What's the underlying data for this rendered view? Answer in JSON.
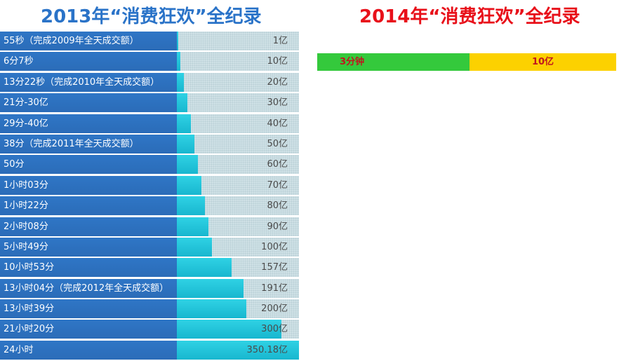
{
  "chart_data": [
    {
      "type": "bar",
      "title": "2013年“消费狂欢”全纪录",
      "categories": [
        "55秒（完成2009年全天成交额）",
        "6分7秒",
        "13分22秒（完成2010年全天成交额）",
        "21分-30亿",
        "29分-40亿",
        "38分（完成2011年全天成交额）",
        "50分",
        "1小时03分",
        "1小时22分",
        "2小时08分",
        "5小时49分",
        "10小时53分",
        "13小时04分（完成2012年全天成交额）",
        "13小时39分",
        "21小时20分",
        "24小时"
      ],
      "values": [
        1,
        10,
        20,
        30,
        40,
        50,
        60,
        70,
        80,
        90,
        100,
        157,
        191,
        200,
        300,
        350.18
      ],
      "value_labels": [
        "1亿",
        "10亿",
        "20亿",
        "30亿",
        "40亿",
        "50亿",
        "60亿",
        "70亿",
        "80亿",
        "90亿",
        "100亿",
        "157亿",
        "191亿",
        "200亿",
        "300亿",
        "350.18亿"
      ],
      "unit": "亿",
      "xlim": [
        0,
        350.18
      ],
      "colors": {
        "label_band": "#2f76c6",
        "bar": "#1fc3d8",
        "track": "#cfe1e6",
        "value_text": "#4a4a4a",
        "title": "#2a73c8"
      }
    },
    {
      "type": "bar",
      "title": "2014年“消费狂欢”全纪录",
      "categories": [
        "3分钟"
      ],
      "values": [
        10
      ],
      "value_labels": [
        "10亿"
      ],
      "unit": "亿",
      "colors": {
        "time_segment": "#34c93c",
        "amount_segment": "#fcd100",
        "text": "#c0161e",
        "title": "#e8101a"
      }
    }
  ]
}
